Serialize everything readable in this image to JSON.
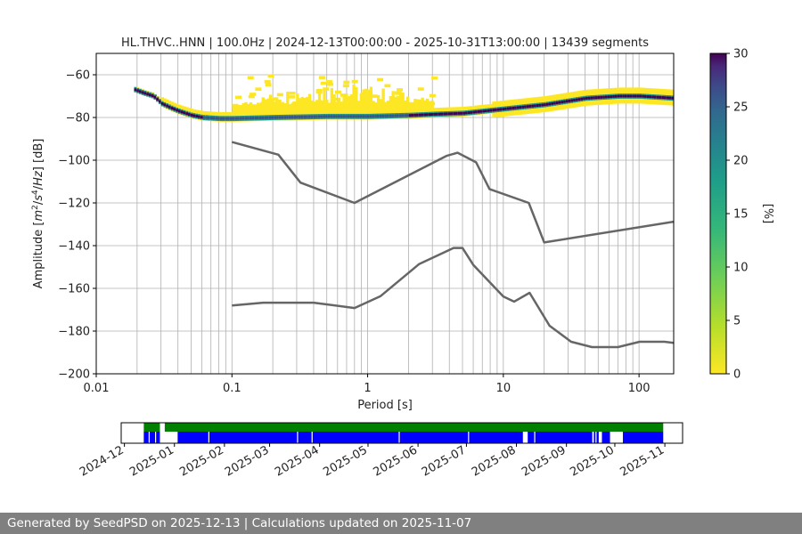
{
  "chart_data": [
    {
      "type": "heatmap",
      "title": "HL.THVC..HNN | 100.0Hz | 2024-12-13T00:00:00 - 2025-10-31T13:00:00 | 13439 segments",
      "xlabel": "Period [s]",
      "ylabel": "Amplitude [$m^2/s^4/Hz$] [dB]",
      "x_scale": "log",
      "xlim": [
        0.01,
        180
      ],
      "ylim": [
        -200,
        -50
      ],
      "x_ticks": [
        "0.01",
        "0.1",
        "1",
        "10",
        "100"
      ],
      "y_ticks": [
        "−60",
        "−80",
        "−100",
        "−120",
        "−140",
        "−160",
        "−180",
        "−200"
      ],
      "grid_vertical_periods": [
        0.02,
        0.03,
        0.04,
        0.05,
        0.06,
        0.07,
        0.08,
        0.09,
        0.1,
        0.2,
        0.3,
        0.4,
        0.5,
        0.6,
        0.7,
        0.8,
        0.9,
        1,
        2,
        3,
        4,
        5,
        6,
        7,
        8,
        9,
        10,
        20,
        30,
        40,
        50,
        60,
        70,
        80,
        90,
        100
      ],
      "grid_horizontal": true,
      "colormap": "viridis_r",
      "colorbar": {
        "label": "[%]",
        "range": [
          0,
          30
        ],
        "ticks": [
          "0",
          "5",
          "10",
          "15",
          "20",
          "25",
          "30"
        ]
      },
      "mode_line": {
        "periods": [
          0.019,
          0.022,
          0.026,
          0.03,
          0.035,
          0.04,
          0.05,
          0.06,
          0.08,
          0.1,
          0.2,
          0.5,
          1,
          2,
          3,
          5,
          10,
          20,
          40,
          70,
          100,
          180
        ],
        "db": [
          -67,
          -68.5,
          -70,
          -73.5,
          -75.5,
          -77,
          -79,
          -80,
          -80.5,
          -80.5,
          -80,
          -79.5,
          -79.5,
          -79,
          -78.5,
          -78,
          -76,
          -74,
          -71,
          -70,
          -70,
          -71
        ]
      },
      "noise_models": [
        {
          "name": "NHNM",
          "periods": [
            0.1,
            0.22,
            0.32,
            0.8,
            3.8,
            4.6,
            6.3,
            7.9,
            15.4,
            20,
            180
          ],
          "db": [
            -91.5,
            -97.4,
            -110.5,
            -120,
            -98,
            -96.5,
            -101,
            -113.5,
            -120,
            -138.5,
            -128.8
          ]
        },
        {
          "name": "NLNM",
          "periods": [
            0.1,
            0.17,
            0.4,
            0.8,
            1.24,
            2.4,
            4.3,
            5,
            6,
            10,
            12,
            15.6,
            21.9,
            31.6,
            45,
            70,
            101,
            154,
            180
          ],
          "db": [
            -168,
            -166.7,
            -166.7,
            -169.2,
            -163.7,
            -148.6,
            -141.1,
            -141.1,
            -149,
            -163.8,
            -166.2,
            -162.1,
            -177.5,
            -185,
            -187.5,
            -187.5,
            -185,
            -185,
            -185.5
          ]
        }
      ]
    },
    {
      "type": "timeline",
      "x_ticks": [
        "2024-12",
        "2025-01",
        "2025-02",
        "2025-03",
        "2025-04",
        "2025-05",
        "2025-06",
        "2025-07",
        "2025-08",
        "2025-09",
        "2025-10",
        "2025-11"
      ],
      "date_range": [
        "2024-11-29",
        "2025-11-12"
      ],
      "colors": {
        "coverage": "#008000",
        "data": "#0000ff"
      },
      "coverage_spans": [
        [
          "2024-12-13",
          "2024-12-23"
        ],
        [
          "2024-12-26",
          "2025-10-31"
        ]
      ],
      "data_spans": [
        [
          "2024-12-13",
          "2024-12-23"
        ],
        [
          "2025-01-03",
          "2025-08-05"
        ],
        [
          "2025-08-08",
          "2025-09-17"
        ],
        [
          "2025-09-18",
          "2025-09-21"
        ],
        [
          "2025-09-23",
          "2025-09-28"
        ],
        [
          "2025-10-06",
          "2025-10-31"
        ]
      ],
      "gaps": [
        "2024-12-16",
        "2024-12-20",
        "2025-01-22",
        "2025-03-18",
        "2025-03-27",
        "2025-05-20",
        "2025-07-02",
        "2025-08-12",
        "2025-09-19",
        "2025-09-22"
      ]
    }
  ],
  "footer": "Generated by SeedPSD on 2025-12-13 | Calculations updated on 2025-11-07"
}
